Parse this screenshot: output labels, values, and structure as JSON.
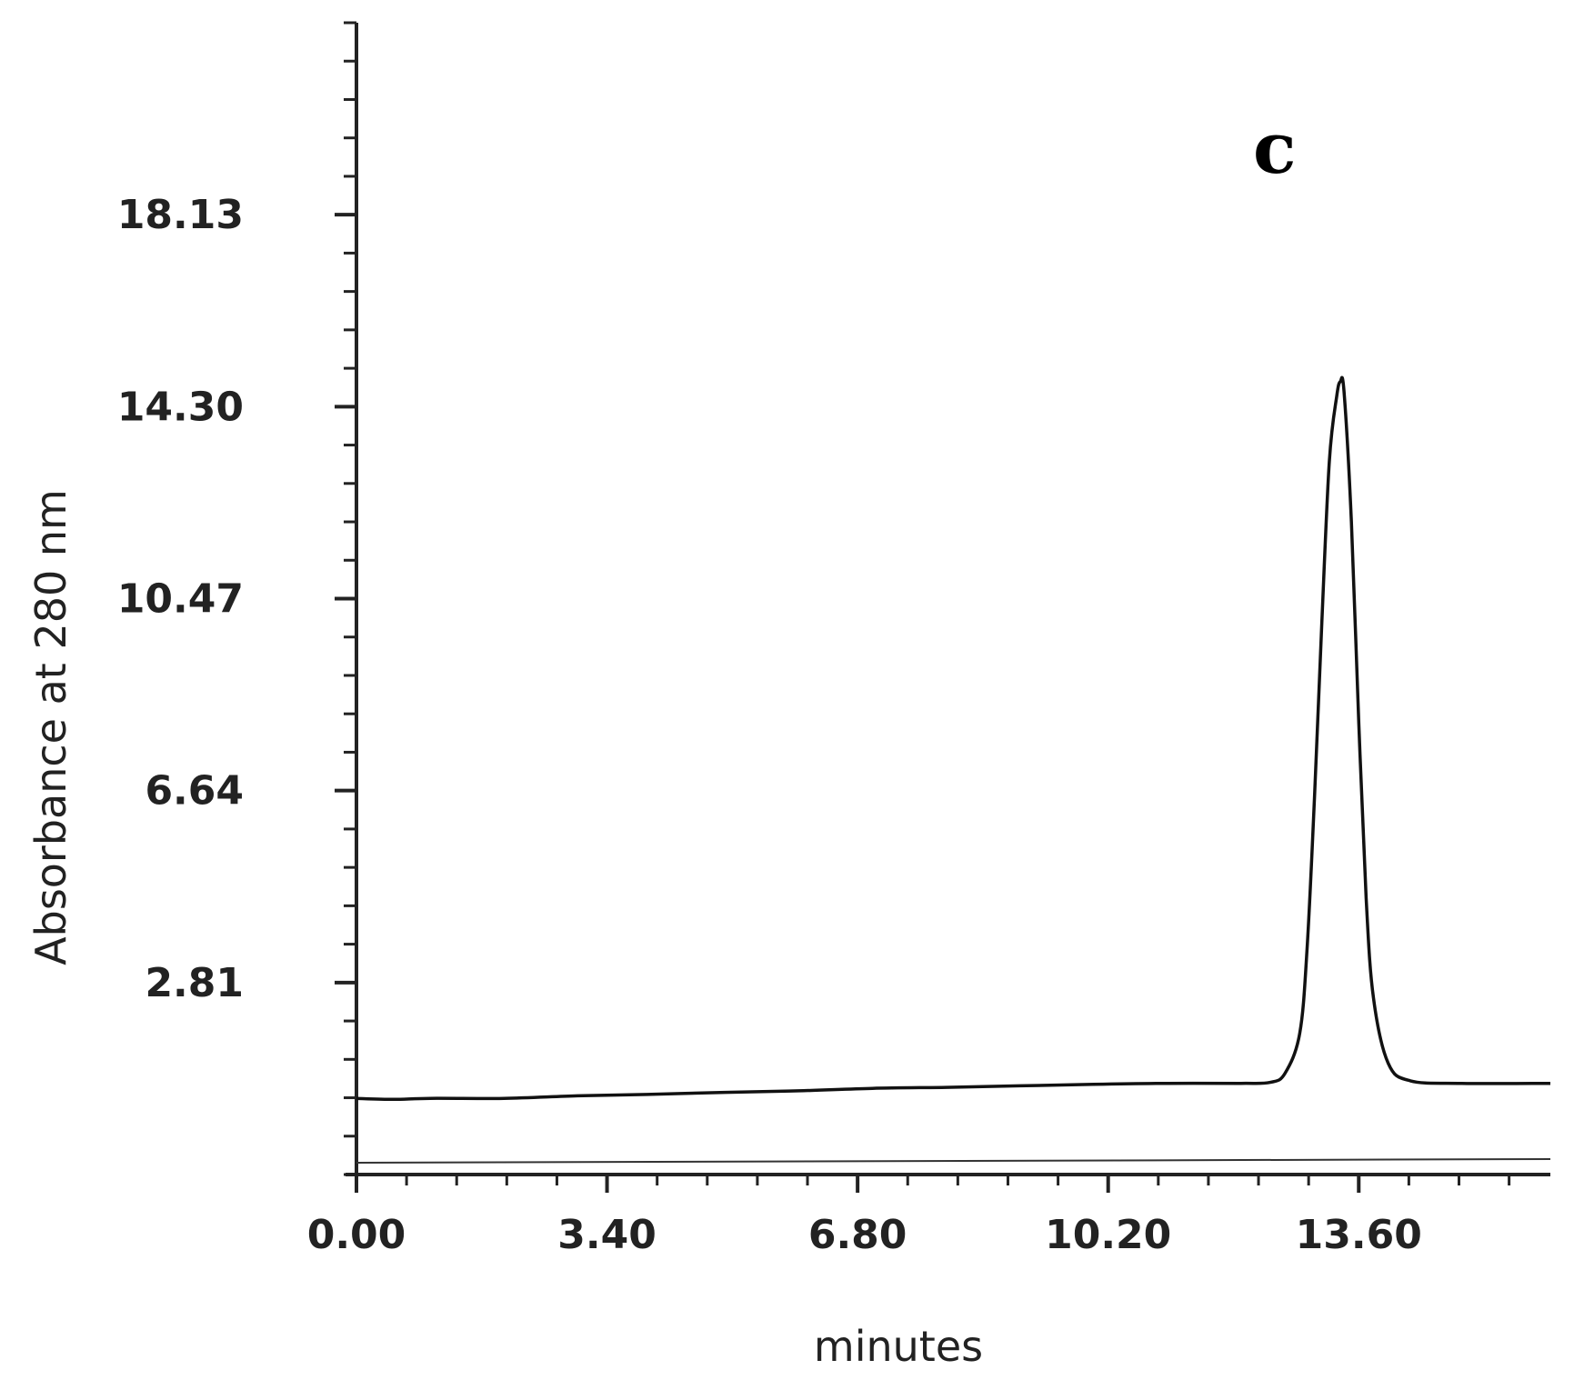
{
  "chart_data": {
    "type": "line",
    "panel_label": "c",
    "xlabel": "minutes",
    "ylabel": "Absorbance at 280 nm",
    "x_ticks": [
      "0.00",
      "3.40",
      "6.80",
      "10.20",
      "13.60"
    ],
    "y_ticks": [
      "2.81",
      "6.64",
      "10.47",
      "14.30",
      "18.13"
    ],
    "xlim": [
      0.0,
      16.2
    ],
    "ylim": [
      -1.02,
      21.96
    ],
    "grid": false,
    "series": [
      {
        "x": [
          0.0,
          0.5,
          1.0,
          2.0,
          3.0,
          4.0,
          5.0,
          6.0,
          7.0,
          8.0,
          9.0,
          10.0,
          11.0,
          12.0,
          12.4,
          12.6,
          12.8,
          12.9,
          13.0,
          13.1,
          13.2,
          13.3,
          13.35,
          13.4,
          13.5,
          13.6,
          13.7,
          13.8,
          14.0,
          14.3,
          15.0,
          16.2
        ],
        "y": [
          0.5,
          0.48,
          0.5,
          0.5,
          0.55,
          0.58,
          0.62,
          0.65,
          0.7,
          0.72,
          0.75,
          0.78,
          0.8,
          0.8,
          0.82,
          1.0,
          1.8,
          3.5,
          6.5,
          10.0,
          13.2,
          14.5,
          14.8,
          14.6,
          12.0,
          8.0,
          4.5,
          2.5,
          1.2,
          0.85,
          0.8,
          0.8
        ]
      }
    ]
  }
}
